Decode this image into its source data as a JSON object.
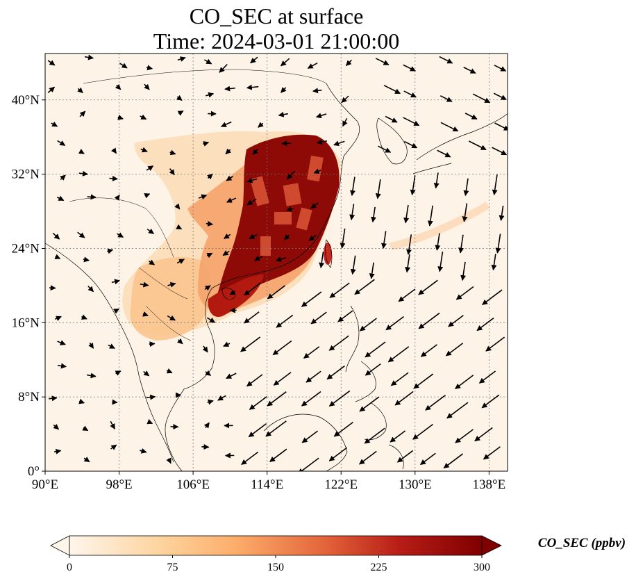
{
  "title": {
    "line1": "CO_SEC at surface",
    "line2": "Time: 2024-03-01 21:00:00"
  },
  "map": {
    "lon_range": [
      90,
      140
    ],
    "lat_range": [
      0,
      45
    ],
    "lon_ticks": [
      {
        "value": 90,
        "label": "90°E"
      },
      {
        "value": 98,
        "label": "98°E"
      },
      {
        "value": 106,
        "label": "106°E"
      },
      {
        "value": 114,
        "label": "114°E"
      },
      {
        "value": 122,
        "label": "122°E"
      },
      {
        "value": 130,
        "label": "130°E"
      },
      {
        "value": 138,
        "label": "138°E"
      }
    ],
    "lat_ticks": [
      {
        "value": 0,
        "label": "0°"
      },
      {
        "value": 8,
        "label": "8°N"
      },
      {
        "value": 16,
        "label": "16°N"
      },
      {
        "value": 24,
        "label": "24°N"
      },
      {
        "value": 32,
        "label": "32°N"
      },
      {
        "value": 40,
        "label": "40°N"
      }
    ],
    "gridlines": "dotted",
    "colors": {
      "ocean": "#fdf4e7",
      "land_outline": "#000000",
      "arrow": "#000000"
    }
  },
  "colorbar": {
    "label": "CO_SEC (ppbv)",
    "min": 0,
    "max": 300,
    "ticks": [
      {
        "value": 0,
        "label": "0"
      },
      {
        "value": 75,
        "label": "75"
      },
      {
        "value": 150,
        "label": "150"
      },
      {
        "value": 225,
        "label": "225"
      },
      {
        "value": 300,
        "label": "300"
      }
    ],
    "extend": "both",
    "colormap": [
      "#fff5eb",
      "#fdd49e",
      "#fdae6b",
      "#f16913",
      "#d94801",
      "#a50f15",
      "#7f0000"
    ]
  }
}
